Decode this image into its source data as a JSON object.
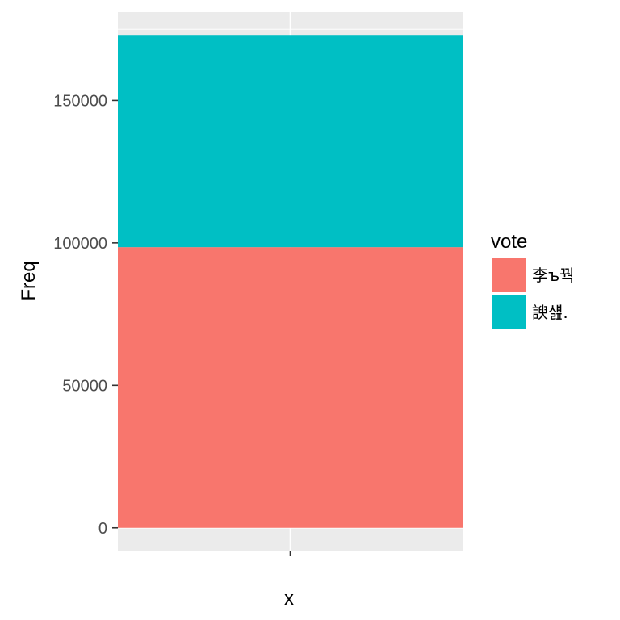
{
  "chart_data": {
    "type": "bar",
    "stacked": true,
    "categories": [
      ""
    ],
    "series": [
      {
        "name": "李ъ꿕",
        "values": [
          98500
        ]
      },
      {
        "name": "諛섎.",
        "values": [
          74500
        ]
      }
    ],
    "xlabel": "x",
    "ylabel": "Freq",
    "ylim": [
      -8000,
      181000
    ],
    "yticks": [
      0,
      50000,
      100000,
      150000
    ],
    "ytick_labels": [
      "0",
      "50000",
      "100000",
      "150000"
    ],
    "grid": true,
    "legend": {
      "title": "vote",
      "position": "right"
    }
  },
  "colors": {
    "panel_background": "#ebebeb",
    "grid_major": "#ffffff",
    "series": [
      "#f8766d",
      "#00bfc4"
    ]
  }
}
